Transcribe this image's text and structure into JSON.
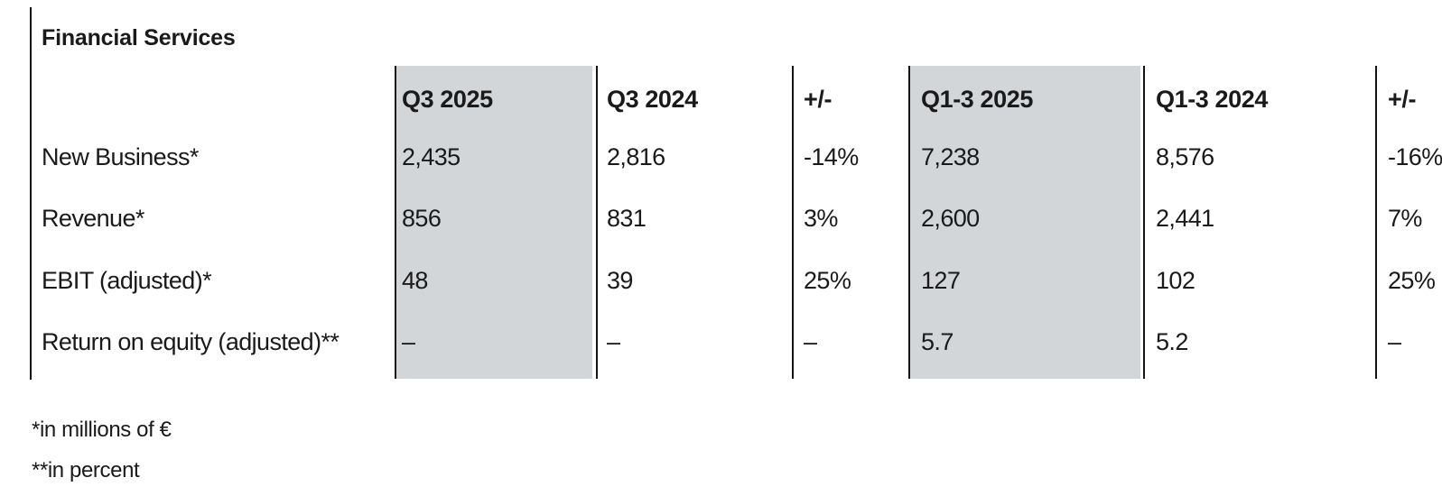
{
  "title": "Financial Services",
  "table": {
    "columns": [
      {
        "label": "Q3 2025",
        "highlight": true
      },
      {
        "label": "Q3 2024",
        "highlight": false
      },
      {
        "label": "+/-",
        "highlight": false
      },
      {
        "label": "Q1-3 2025",
        "highlight": true
      },
      {
        "label": "Q1-3 2024",
        "highlight": false
      },
      {
        "label": "+/-",
        "highlight": false
      }
    ],
    "rows": [
      {
        "label": "New Business*",
        "values": [
          "2,435",
          "2,816",
          "-14%",
          "7,238",
          "8,576",
          "-16%"
        ]
      },
      {
        "label": "Revenue*",
        "values": [
          "856",
          "831",
          "3%",
          "2,600",
          "2,441",
          "7%"
        ]
      },
      {
        "label": "EBIT (adjusted)*",
        "values": [
          "48",
          "39",
          "25%",
          "127",
          "102",
          "25%"
        ]
      },
      {
        "label": "Return on equity (adjusted)**",
        "values": [
          "–",
          "–",
          "–",
          "5.7",
          "5.2",
          "–"
        ]
      }
    ]
  },
  "footnotes": [
    "*in millions of €",
    "**in percent"
  ],
  "colors": {
    "highlight_column": "#d3d6d9",
    "rule": "#141414",
    "text": "#1a1a1a",
    "background": "#ffffff"
  }
}
